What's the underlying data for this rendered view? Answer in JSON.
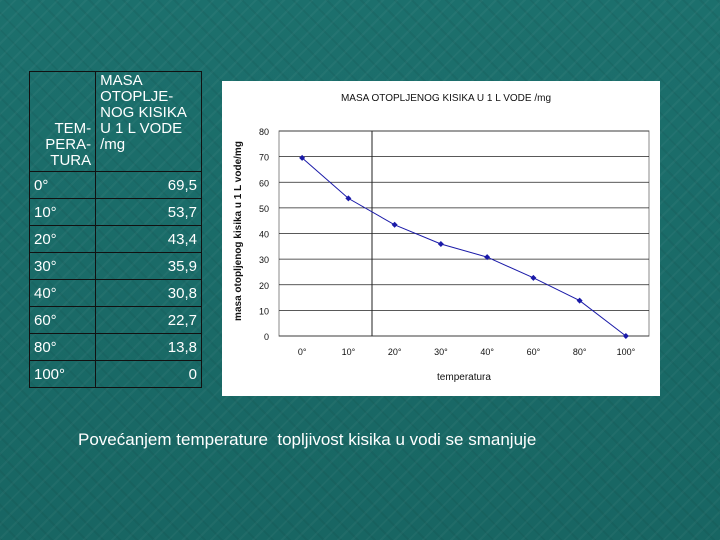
{
  "table": {
    "header_col1": "TEM-\nPERA-\nTURA",
    "header_col2": "MASA\nOTOPLJE-\nNOG KISIKA\nU 1 L VODE\n/mg",
    "rows": [
      {
        "temp": "0°",
        "mass": "69,5"
      },
      {
        "temp": "10°",
        "mass": "53,7"
      },
      {
        "temp": "20°",
        "mass": "43,4"
      },
      {
        "temp": "30°",
        "mass": "35,9"
      },
      {
        "temp": "40°",
        "mass": "30,8"
      },
      {
        "temp": "60°",
        "mass": "22,7"
      },
      {
        "temp": "80°",
        "mass": "13,8"
      },
      {
        "temp": "100°",
        "mass": "0"
      }
    ]
  },
  "chart_data": {
    "type": "line",
    "title": "MASA OTOPLJENOG KISIKA  U 1 L VODE /mg",
    "xlabel": "temperatura",
    "ylabel": "masa otopljenog kisika u 1 L vode/mg",
    "categories": [
      "0°",
      "10°",
      "20°",
      "30°",
      "40°",
      "60°",
      "80°",
      "100°"
    ],
    "series": [
      {
        "values": [
          69.5,
          53.7,
          43.4,
          35.9,
          30.8,
          22.7,
          13.8,
          0
        ]
      }
    ],
    "ylim": [
      0,
      80
    ],
    "yticks": [
      "0",
      "10",
      "20",
      "30",
      "40",
      "50",
      "60",
      "70",
      "80"
    ],
    "grid": "horizontal",
    "line_color": "#1a1aa8"
  },
  "caption": "Povećanjem temperature  topljivost kisika u vodi se smanjuje"
}
